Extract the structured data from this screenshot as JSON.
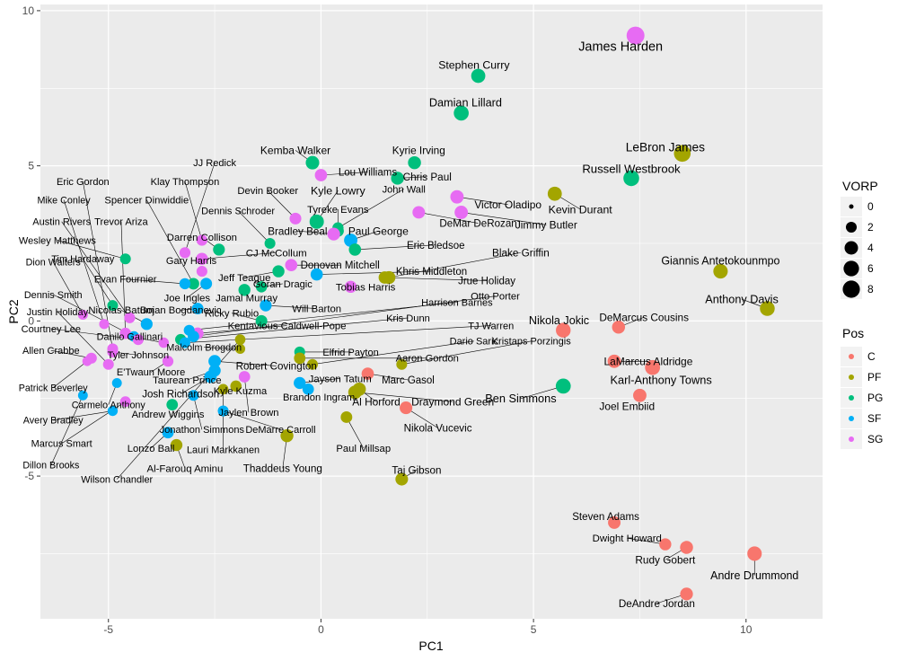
{
  "chart_data": {
    "type": "scatter",
    "xlabel": "PC1",
    "ylabel": "PC2",
    "xlim": [
      -6.6,
      11.8
    ],
    "ylim": [
      -9.6,
      10.2
    ],
    "x_ticks": [
      -5,
      0,
      5,
      10
    ],
    "y_ticks": [
      -5,
      0,
      5,
      10
    ],
    "x_tick_labels": [
      "-5",
      "0",
      "5",
      "10"
    ],
    "y_tick_labels": [
      "-5",
      "0",
      "5",
      "10"
    ],
    "grid": true,
    "legend_position": "right",
    "size_legend": {
      "title": "VORP",
      "values": [
        0,
        2,
        4,
        6,
        8
      ],
      "labels": [
        "0",
        "2",
        "4",
        "6",
        "8"
      ]
    },
    "color_legend": {
      "title": "Pos",
      "categories": [
        "C",
        "PF",
        "PG",
        "SF",
        "SG"
      ],
      "colors": {
        "C": "#F8766D",
        "PF": "#A3A500",
        "PG": "#00BF7D",
        "SF": "#00B0F6",
        "SG": "#E76BF3"
      }
    },
    "points": [
      {
        "name": "James Harden",
        "pos": "SG",
        "x": 7.4,
        "y": 9.2,
        "vorp": 8.9,
        "lx": 7.05,
        "ly": 8.85
      },
      {
        "name": "Stephen Curry",
        "pos": "PG",
        "x": 3.7,
        "y": 7.9,
        "vorp": 4.6,
        "lx": 3.6,
        "ly": 8.25
      },
      {
        "name": "Damian Lillard",
        "pos": "PG",
        "x": 3.3,
        "y": 6.7,
        "vorp": 5.4,
        "lx": 3.4,
        "ly": 7.05
      },
      {
        "name": "LeBron James",
        "pos": "PF",
        "x": 8.5,
        "y": 5.4,
        "vorp": 7.4,
        "lx": 8.1,
        "ly": 5.6
      },
      {
        "name": "Russell Westbrook",
        "pos": "PG",
        "x": 7.3,
        "y": 4.6,
        "vorp": 6.3,
        "lx": 7.3,
        "ly": 4.9
      },
      {
        "name": "Kemba Walker",
        "pos": "PG",
        "x": -0.2,
        "y": 5.1,
        "vorp": 4.0,
        "lx": -0.6,
        "ly": 5.5
      },
      {
        "name": "Kyrie Irving",
        "pos": "PG",
        "x": 2.2,
        "y": 5.1,
        "vorp": 3.6,
        "lx": 2.3,
        "ly": 5.5
      },
      {
        "name": "Lou Williams",
        "pos": "SG",
        "x": 0.0,
        "y": 4.7,
        "vorp": 3.0,
        "lx": 1.1,
        "ly": 4.8
      },
      {
        "name": "Chris Paul",
        "pos": "PG",
        "x": 1.8,
        "y": 4.6,
        "vorp": 3.5,
        "lx": 2.5,
        "ly": 4.65
      },
      {
        "name": "Kevin Durant",
        "pos": "PF",
        "x": 5.5,
        "y": 4.1,
        "vorp": 4.6,
        "lx": 6.1,
        "ly": 3.6
      },
      {
        "name": "Victor Oladipo",
        "pos": "SG",
        "x": 3.2,
        "y": 4.0,
        "vorp": 3.9,
        "lx": 4.4,
        "ly": 3.75
      },
      {
        "name": "Kyle Lowry",
        "pos": "PG",
        "x": -0.1,
        "y": 3.2,
        "vorp": 4.8,
        "lx": 0.4,
        "ly": 4.2
      },
      {
        "name": "Devin Booker",
        "pos": "SG",
        "x": -0.6,
        "y": 3.3,
        "vorp": 2.6,
        "lx": -1.25,
        "ly": 4.2
      },
      {
        "name": "John Wall",
        "pos": "PG",
        "x": 0.4,
        "y": 3.0,
        "vorp": 2.2,
        "lx": 1.95,
        "ly": 4.25
      },
      {
        "name": "Dennis Schroder",
        "pos": "PG",
        "x": -1.2,
        "y": 2.5,
        "vorp": 2.0,
        "lx": -1.95,
        "ly": 3.55
      },
      {
        "name": "Tyreke Evans",
        "pos": "PG",
        "x": 0.4,
        "y": 2.9,
        "vorp": 2.6,
        "lx": 0.4,
        "ly": 3.6
      },
      {
        "name": "DeMar DeRozan",
        "pos": "SG",
        "x": 2.3,
        "y": 3.5,
        "vorp": 3.2,
        "lx": 3.7,
        "ly": 3.15
      },
      {
        "name": "Jimmy Butler",
        "pos": "SG",
        "x": 3.3,
        "y": 3.5,
        "vorp": 3.9,
        "lx": 5.3,
        "ly": 3.1
      },
      {
        "name": "Bradley Beal",
        "pos": "SG",
        "x": 0.3,
        "y": 2.8,
        "vorp": 3.4,
        "lx": -0.55,
        "ly": 2.9
      },
      {
        "name": "Paul George",
        "pos": "SF",
        "x": 0.7,
        "y": 2.6,
        "vorp": 3.9,
        "lx": 1.35,
        "ly": 2.9
      },
      {
        "name": "Darren Collison",
        "pos": "PG",
        "x": -2.4,
        "y": 2.3,
        "vorp": 2.7,
        "lx": -2.8,
        "ly": 2.7
      },
      {
        "name": "Eric Bledsoe",
        "pos": "PG",
        "x": 0.8,
        "y": 2.3,
        "vorp": 3.0,
        "lx": 2.7,
        "ly": 2.45
      },
      {
        "name": "CJ McCollum",
        "pos": "SG",
        "x": -2.8,
        "y": 2.0,
        "vorp": 2.9,
        "lx": -1.05,
        "ly": 2.2
      },
      {
        "name": "Gary Harris",
        "pos": "SG",
        "x": -2.8,
        "y": 1.6,
        "vorp": 2.0,
        "lx": -3.05,
        "ly": 1.95
      },
      {
        "name": "Blake Griffin",
        "pos": "PF",
        "x": 1.6,
        "y": 1.4,
        "vorp": 3.5,
        "lx": 4.7,
        "ly": 2.2
      },
      {
        "name": "Donovan Mitchell",
        "pos": "SG",
        "x": -0.7,
        "y": 1.8,
        "vorp": 3.0,
        "lx": 0.45,
        "ly": 1.8
      },
      {
        "name": "Khris Middleton",
        "pos": "SF",
        "x": -0.1,
        "y": 1.5,
        "vorp": 3.0,
        "lx": 2.6,
        "ly": 1.6
      },
      {
        "name": "Jeff Teague",
        "pos": "PG",
        "x": -1.0,
        "y": 1.6,
        "vorp": 2.8,
        "lx": -1.8,
        "ly": 1.4
      },
      {
        "name": "Jrue Holiday",
        "pos": "PF",
        "x": 1.5,
        "y": 1.4,
        "vorp": 3.0,
        "lx": 3.9,
        "ly": 1.3
      },
      {
        "name": "Goran Dragic",
        "pos": "PG",
        "x": -1.4,
        "y": 1.1,
        "vorp": 2.2,
        "lx": -0.9,
        "ly": 1.2
      },
      {
        "name": "Tobias Harris",
        "pos": "SG",
        "x": 0.7,
        "y": 1.1,
        "vorp": 2.8,
        "lx": 1.05,
        "ly": 1.1
      },
      {
        "name": "Joe Ingles",
        "pos": "SF",
        "x": -2.7,
        "y": 1.2,
        "vorp": 2.6,
        "lx": -3.15,
        "ly": 0.75
      },
      {
        "name": "Jamal Murray",
        "pos": "PG",
        "x": -1.8,
        "y": 1.0,
        "vorp": 2.8,
        "lx": -1.75,
        "ly": 0.75
      },
      {
        "name": "Will Barton",
        "pos": "SF",
        "x": -1.3,
        "y": 0.5,
        "vorp": 2.7,
        "lx": -0.1,
        "ly": 0.4
      },
      {
        "name": "Ricky Rubio",
        "pos": "PG",
        "x": -1.4,
        "y": 0.0,
        "vorp": 2.6,
        "lx": -2.1,
        "ly": 0.25
      },
      {
        "name": "Bojan Bogdanovic",
        "pos": "SF",
        "x": -2.9,
        "y": 0.4,
        "vorp": 2.5,
        "lx": -3.3,
        "ly": 0.35
      },
      {
        "name": "Kentavious Caldwell-Pope",
        "pos": "SG",
        "x": -2.9,
        "y": -0.4,
        "vorp": 2.6,
        "lx": -0.8,
        "ly": -0.15
      },
      {
        "name": "Harrison Barnes",
        "pos": "SF",
        "x": -3.1,
        "y": -0.3,
        "vorp": 2.0,
        "lx": 3.2,
        "ly": 0.6
      },
      {
        "name": "Otto Porter",
        "pos": "SF",
        "x": -3.0,
        "y": -0.5,
        "vorp": 2.4,
        "lx": 4.1,
        "ly": 0.8
      },
      {
        "name": "Kris Dunn",
        "pos": "PG",
        "x": -3.3,
        "y": -0.6,
        "vorp": 2.2,
        "lx": 2.05,
        "ly": 0.1
      },
      {
        "name": "TJ Warren",
        "pos": "SF",
        "x": -3.2,
        "y": -0.7,
        "vorp": 2.0,
        "lx": 4.0,
        "ly": -0.15
      },
      {
        "name": "Dario Saric",
        "pos": "PF",
        "x": -0.2,
        "y": -1.4,
        "vorp": 2.0,
        "lx": 3.6,
        "ly": -0.65
      },
      {
        "name": "Kristaps Porzingis",
        "pos": "PF",
        "x": 1.9,
        "y": -1.4,
        "vorp": 2.0,
        "lx": 4.95,
        "ly": -0.65
      },
      {
        "name": "Nikola Jokic",
        "pos": "C",
        "x": 5.7,
        "y": -0.3,
        "vorp": 5.2,
        "lx": 5.6,
        "ly": 0.02
      },
      {
        "name": "DeMarcus Cousins",
        "pos": "C",
        "x": 7.0,
        "y": -0.2,
        "vorp": 3.6,
        "lx": 7.6,
        "ly": 0.12
      },
      {
        "name": "Giannis Antetokounmpo",
        "pos": "PF",
        "x": 9.4,
        "y": 1.6,
        "vorp": 4.9,
        "lx": 9.4,
        "ly": 1.95
      },
      {
        "name": "Anthony Davis",
        "pos": "PF",
        "x": 10.5,
        "y": 0.4,
        "vorp": 5.3,
        "lx": 9.9,
        "ly": 0.7
      },
      {
        "name": "LaMarcus Aldridge",
        "pos": "C",
        "x": 6.9,
        "y": -1.3,
        "vorp": 3.9,
        "lx": 7.7,
        "ly": -1.3
      },
      {
        "name": "Karl-Anthony Towns",
        "pos": "C",
        "x": 7.8,
        "y": -1.5,
        "vorp": 5.5,
        "lx": 8.0,
        "ly": -1.9
      },
      {
        "name": "Joel Embiid",
        "pos": "C",
        "x": 7.5,
        "y": -2.4,
        "vorp": 3.9,
        "lx": 7.2,
        "ly": -2.75
      },
      {
        "name": "Ben Simmons",
        "pos": "PG",
        "x": 5.7,
        "y": -2.1,
        "vorp": 5.5,
        "lx": 4.7,
        "ly": -2.5
      },
      {
        "name": "Elfrid Payton",
        "pos": "PG",
        "x": -0.5,
        "y": -1.0,
        "vorp": 2.0,
        "lx": 0.7,
        "ly": -1.0
      },
      {
        "name": "Aaron Gordon",
        "pos": "PF",
        "x": -0.5,
        "y": -1.2,
        "vorp": 2.4,
        "lx": 2.5,
        "ly": -1.2
      },
      {
        "name": "Robert Covington",
        "pos": "SF",
        "x": -2.5,
        "y": -1.3,
        "vorp": 3.2,
        "lx": -1.05,
        "ly": -1.45
      },
      {
        "name": "Jayson Tatum",
        "pos": "SF",
        "x": -0.5,
        "y": -2.0,
        "vorp": 2.8,
        "lx": 0.45,
        "ly": -1.85
      },
      {
        "name": "Marc Gasol",
        "pos": "C",
        "x": 1.1,
        "y": -1.7,
        "vorp": 3.0,
        "lx": 2.05,
        "ly": -1.9
      },
      {
        "name": "Al Horford",
        "pos": "PF",
        "x": 0.9,
        "y": -2.2,
        "vorp": 3.8,
        "lx": 1.3,
        "ly": -2.6
      },
      {
        "name": "Brandon Ingram",
        "pos": "SF",
        "x": -0.3,
        "y": -2.2,
        "vorp": 2.4,
        "lx": -0.05,
        "ly": -2.45
      },
      {
        "name": "Draymond Green",
        "pos": "PF",
        "x": 0.8,
        "y": -2.3,
        "vorp": 4.0,
        "lx": 3.1,
        "ly": -2.6
      },
      {
        "name": "Nikola Vucevic",
        "pos": "C",
        "x": 2.0,
        "y": -2.8,
        "vorp": 3.3,
        "lx": 2.75,
        "ly": -3.45
      },
      {
        "name": "DeMarre Carroll",
        "pos": "SF",
        "x": -2.3,
        "y": -2.9,
        "vorp": 2.0,
        "lx": -0.95,
        "ly": -3.5
      },
      {
        "name": "Paul Millsap",
        "pos": "PF",
        "x": 0.6,
        "y": -3.1,
        "vorp": 2.5,
        "lx": 1.0,
        "ly": -4.1
      },
      {
        "name": "Thaddeus Young",
        "pos": "PF",
        "x": -0.8,
        "y": -3.7,
        "vorp": 3.5,
        "lx": -0.9,
        "ly": -4.75
      },
      {
        "name": "Taj Gibson",
        "pos": "PF",
        "x": 1.9,
        "y": -5.1,
        "vorp": 3.3,
        "lx": 2.25,
        "ly": -4.8
      },
      {
        "name": "Kyle Kuzma",
        "pos": "PF",
        "x": -2.0,
        "y": -2.1,
        "vorp": 2.3,
        "lx": -1.9,
        "ly": -2.25
      },
      {
        "name": "Jaylen Brown",
        "pos": "SG",
        "x": -1.8,
        "y": -1.8,
        "vorp": 2.4,
        "lx": -1.7,
        "ly": -2.95
      },
      {
        "name": "Josh Richardson",
        "pos": "SF",
        "x": -2.6,
        "y": -1.8,
        "vorp": 3.1,
        "lx": -3.3,
        "ly": -2.35
      },
      {
        "name": "Taurean Prince",
        "pos": "SF",
        "x": -2.5,
        "y": -1.6,
        "vorp": 2.8,
        "lx": -3.15,
        "ly": -1.9
      },
      {
        "name": "E'Twaun Moore",
        "pos": "SG",
        "x": -3.6,
        "y": -1.3,
        "vorp": 2.1,
        "lx": -4.0,
        "ly": -1.65
      },
      {
        "name": "Tyler Johnson",
        "pos": "SG",
        "x": -4.9,
        "y": -1.0,
        "vorp": 2.0,
        "lx": -4.3,
        "ly": -1.1
      },
      {
        "name": "Andrew Wiggins",
        "pos": "PG",
        "x": -3.5,
        "y": -2.7,
        "vorp": 2.4,
        "lx": -3.6,
        "ly": -3.0
      },
      {
        "name": "Jonathon Simmons",
        "pos": "SF",
        "x": -3.0,
        "y": -2.4,
        "vorp": 2.0,
        "lx": -2.8,
        "ly": -3.5
      },
      {
        "name": "Lonzo Ball",
        "pos": "SF",
        "x": -3.6,
        "y": -3.6,
        "vorp": 2.5,
        "lx": -4.0,
        "ly": -4.1
      },
      {
        "name": "Lauri Markkanen",
        "pos": "PF",
        "x": -2.3,
        "y": -2.2,
        "vorp": 1.8,
        "lx": -2.3,
        "ly": -4.15
      },
      {
        "name": "Al-Farouq Aminu",
        "pos": "PF",
        "x": -3.4,
        "y": -4.0,
        "vorp": 2.8,
        "lx": -3.2,
        "ly": -4.75
      },
      {
        "name": "Malcolm Brogdon",
        "pos": "PF",
        "x": -1.9,
        "y": -0.9,
        "vorp": 1.5,
        "lx": -2.75,
        "ly": -0.85
      },
      {
        "name": "Wilson Chandler",
        "pos": "PF",
        "x": -1.9,
        "y": -0.6,
        "vorp": 1.8,
        "lx": -4.8,
        "ly": -5.1
      },
      {
        "name": "Eric Gordon",
        "pos": "SG",
        "x": -4.9,
        "y": -0.9,
        "vorp": 2.0,
        "lx": -5.6,
        "ly": 4.5
      },
      {
        "name": "JJ Redick",
        "pos": "SG",
        "x": -3.2,
        "y": 2.2,
        "vorp": 2.1,
        "lx": -2.5,
        "ly": 5.1
      },
      {
        "name": "Klay Thompson",
        "pos": "SG",
        "x": -2.8,
        "y": 2.6,
        "vorp": 2.1,
        "lx": -3.2,
        "ly": 4.5
      },
      {
        "name": "Mike Conley",
        "pos": "SG",
        "x": -5.1,
        "y": -0.1,
        "vorp": 1.5,
        "lx": -6.05,
        "ly": 3.9
      },
      {
        "name": "Spencer Dinwiddie",
        "pos": "PG",
        "x": -3.0,
        "y": 1.2,
        "vorp": 2.5,
        "lx": -4.1,
        "ly": 3.9
      },
      {
        "name": "Austin Rivers",
        "pos": "SG",
        "x": -4.5,
        "y": 0.1,
        "vorp": 2.0,
        "lx": -6.1,
        "ly": 3.2
      },
      {
        "name": "Trevor Ariza",
        "pos": "SG",
        "x": -4.6,
        "y": -0.4,
        "vorp": 2.3,
        "lx": -4.7,
        "ly": 3.2
      },
      {
        "name": "Wesley Matthews",
        "pos": "PG",
        "x": -4.6,
        "y": 2.0,
        "vorp": 2.0,
        "lx": -6.2,
        "ly": 2.6
      },
      {
        "name": "Tim Hardaway",
        "pos": "PG",
        "x": -4.9,
        "y": 0.5,
        "vorp": 1.9,
        "lx": -5.6,
        "ly": 2.0
      },
      {
        "name": "Evan Fournier",
        "pos": "SF",
        "x": -3.2,
        "y": 1.2,
        "vorp": 2.2,
        "lx": -4.6,
        "ly": 1.35
      },
      {
        "name": "Dion Waiters",
        "pos": "SG",
        "x": -5.6,
        "y": 0.2,
        "vorp": 1.5,
        "lx": -6.3,
        "ly": 1.9
      },
      {
        "name": "Dennis Smith",
        "pos": "SF",
        "x": -4.4,
        "y": -0.5,
        "vorp": 1.8,
        "lx": -6.3,
        "ly": 0.85
      },
      {
        "name": "Justin Holiday",
        "pos": "SG",
        "x": -5.0,
        "y": -1.4,
        "vorp": 2.0,
        "lx": -6.2,
        "ly": 0.3
      },
      {
        "name": "Nicolas Batum",
        "pos": "SF",
        "x": -4.1,
        "y": -0.1,
        "vorp": 2.7,
        "lx": -4.7,
        "ly": 0.35
      },
      {
        "name": "Courtney Lee",
        "pos": "SG",
        "x": -4.3,
        "y": -0.6,
        "vorp": 2.1,
        "lx": -6.35,
        "ly": -0.25
      },
      {
        "name": "Danilo Gallinari",
        "pos": "SG",
        "x": -3.7,
        "y": -0.7,
        "vorp": 1.7,
        "lx": -4.5,
        "ly": -0.5
      },
      {
        "name": "Allen Crabbe",
        "pos": "SG",
        "x": -5.4,
        "y": -1.2,
        "vorp": 2.0,
        "lx": -6.35,
        "ly": -0.95
      },
      {
        "name": "Patrick Beverley",
        "pos": "SG",
        "x": -5.5,
        "y": -1.3,
        "vorp": 1.3,
        "lx": -6.3,
        "ly": -2.15
      },
      {
        "name": "Carmelo Anthony",
        "pos": "SF",
        "x": -4.8,
        "y": -2.0,
        "vorp": 1.4,
        "lx": -5.0,
        "ly": -2.7
      },
      {
        "name": "Avery Bradley",
        "pos": "SF",
        "x": -4.9,
        "y": -2.9,
        "vorp": 1.6,
        "lx": -6.3,
        "ly": -3.2
      },
      {
        "name": "Marcus Smart",
        "pos": "SG",
        "x": -4.6,
        "y": -2.6,
        "vorp": 1.9,
        "lx": -6.1,
        "ly": -3.95
      },
      {
        "name": "Dillon Brooks",
        "pos": "SF",
        "x": -5.6,
        "y": -2.4,
        "vorp": 1.4,
        "lx": -6.35,
        "ly": -4.65
      },
      {
        "name": "Steven Adams",
        "pos": "C",
        "x": 6.9,
        "y": -6.5,
        "vorp": 3.2,
        "lx": 6.7,
        "ly": -6.3
      },
      {
        "name": "Dwight Howard",
        "pos": "C",
        "x": 8.1,
        "y": -7.2,
        "vorp": 2.8,
        "lx": 7.2,
        "ly": -7.0
      },
      {
        "name": "Rudy Gobert",
        "pos": "C",
        "x": 8.6,
        "y": -7.3,
        "vorp": 3.6,
        "lx": 8.1,
        "ly": -7.7
      },
      {
        "name": "Andre Drummond",
        "pos": "C",
        "x": 10.2,
        "y": -7.5,
        "vorp": 4.9,
        "lx": 10.2,
        "ly": -8.2
      },
      {
        "name": "DeAndre Jordan",
        "pos": "C",
        "x": 8.6,
        "y": -8.8,
        "vorp": 3.4,
        "lx": 7.9,
        "ly": -9.1
      }
    ]
  }
}
